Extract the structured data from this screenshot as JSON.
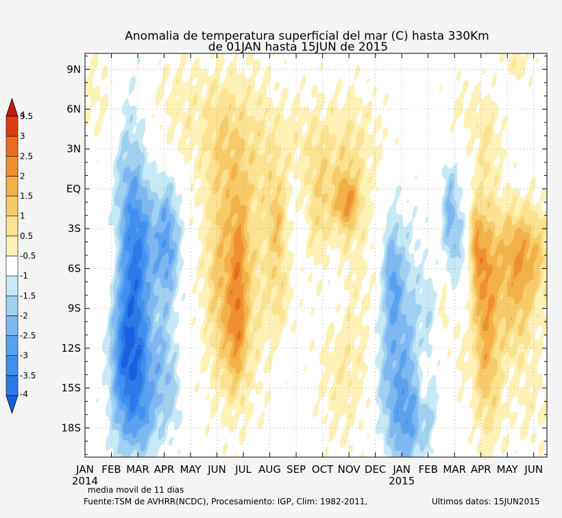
{
  "chart_data": {
    "type": "heatmap",
    "title": "Anomalia de temperatura superficial del mar (C) hasta 330Km",
    "subtitle": "de 01JAN hasta 15JUN de 2015",
    "xlabel": "",
    "ylabel": "",
    "x_tick_labels": [
      "JAN",
      "FEB",
      "MAR",
      "APR",
      "MAY",
      "JUN",
      "JUL",
      "AUG",
      "SEP",
      "OCT",
      "NOV",
      "DEC",
      "JAN",
      "FEB",
      "MAR",
      "APR",
      "MAY",
      "JUN"
    ],
    "x_year_labels": [
      {
        "label": "2014",
        "month_index": 0
      },
      {
        "label": "2015",
        "month_index": 12
      }
    ],
    "x_range_months": [
      0,
      17.5
    ],
    "y_tick_labels": [
      "9N",
      "6N",
      "3N",
      "EQ",
      "3S",
      "6S",
      "9S",
      "12S",
      "15S",
      "18S"
    ],
    "y_tick_values": [
      9,
      6,
      3,
      0,
      -3,
      -6,
      -9,
      -12,
      -15,
      -18
    ],
    "y_range_degrees": [
      -20.2,
      10.2
    ],
    "colorbar": {
      "levels": [
        -4,
        -3.5,
        -3,
        -2.5,
        -2,
        -1.5,
        -1,
        -0.5,
        0.5,
        1,
        1.5,
        2,
        2.5,
        3,
        3.5,
        4
      ],
      "labels": [
        "-4",
        "-3.5",
        "-3",
        "-2.5",
        "-2",
        "-1.5",
        "-1",
        "-0.5",
        "0.5",
        "1",
        "1.5",
        "2",
        "2.5",
        "3",
        "3.5",
        "4"
      ],
      "colors": [
        "#1a5fe0",
        "#2b7ae8",
        "#3f8ff0",
        "#5aa2f0",
        "#7db8f2",
        "#9fd0f0",
        "#c6e9f6",
        "#ffffff",
        "#fdf1b6",
        "#fbe290",
        "#f8cb6a",
        "#f4b048",
        "#f09030",
        "#ea6c1e",
        "#dc3c12",
        "#c21a10"
      ]
    },
    "features": [
      {
        "t": 1.75,
        "lat": -6.5,
        "st": 0.45,
        "sl": 7.5,
        "v": -2.8
      },
      {
        "t": 2.25,
        "lat": -4.5,
        "st": 0.35,
        "sl": 3.5,
        "v": -1.0
      },
      {
        "t": 2.0,
        "lat": -13.5,
        "st": 0.6,
        "sl": 3.0,
        "v": -1.6
      },
      {
        "t": 1.3,
        "lat": -11.5,
        "st": 0.3,
        "sl": 6.5,
        "v": -0.9
      },
      {
        "t": 2.2,
        "lat": -17.5,
        "st": 0.5,
        "sl": 2.0,
        "v": -1.0
      },
      {
        "t": 3.1,
        "lat": -4.0,
        "st": 0.35,
        "sl": 3.5,
        "v": -2.2
      },
      {
        "t": 3.0,
        "lat": -13.5,
        "st": 0.3,
        "sl": 3.0,
        "v": -1.0
      },
      {
        "t": 3.4,
        "lat": -16.0,
        "st": 0.2,
        "sl": 2.0,
        "v": -0.6
      },
      {
        "t": 1.2,
        "lat": -5.5,
        "st": 0.35,
        "sl": 3.0,
        "v": 0.9
      },
      {
        "t": 0.4,
        "lat": 7.0,
        "st": 0.6,
        "sl": 3.0,
        "v": 0.6
      },
      {
        "t": 5.3,
        "lat": -6.5,
        "st": 0.6,
        "sl": 6.5,
        "v": 1.9
      },
      {
        "t": 5.7,
        "lat": -11.5,
        "st": 0.3,
        "sl": 3.0,
        "v": 1.0
      },
      {
        "t": 5.3,
        "lat": 4.5,
        "st": 0.7,
        "sl": 3.5,
        "v": 1.0
      },
      {
        "t": 5.85,
        "lat": -5.5,
        "st": 0.25,
        "sl": 5.0,
        "v": 1.2
      },
      {
        "t": 6.6,
        "lat": -3.5,
        "st": 0.45,
        "sl": 9.0,
        "v": 0.9
      },
      {
        "t": 3.5,
        "lat": 6.0,
        "st": 0.8,
        "sl": 3.5,
        "v": 0.7
      },
      {
        "t": 7.3,
        "lat": -2.5,
        "st": 0.25,
        "sl": 2.5,
        "v": 1.4
      },
      {
        "t": 7.4,
        "lat": -8.0,
        "st": 0.35,
        "sl": 2.5,
        "v": 0.9
      },
      {
        "t": 7.7,
        "lat": 3.5,
        "st": 0.8,
        "sl": 3.0,
        "v": 0.7
      },
      {
        "t": 8.8,
        "lat": -1.5,
        "st": 0.35,
        "sl": 4.0,
        "v": 1.0
      },
      {
        "t": 9.9,
        "lat": -1.0,
        "st": 0.3,
        "sl": 1.3,
        "v": 1.5
      },
      {
        "t": 9.8,
        "lat": -0.5,
        "st": 0.6,
        "sl": 3.0,
        "v": 0.9
      },
      {
        "t": 10.4,
        "lat": -9.5,
        "st": 0.8,
        "sl": 7.0,
        "v": 0.6
      },
      {
        "t": 9.5,
        "lat": -14.5,
        "st": 0.6,
        "sl": 3.5,
        "v": 0.6
      },
      {
        "t": 10.1,
        "lat": 4.0,
        "st": 1.0,
        "sl": 3.0,
        "v": 0.7
      },
      {
        "t": 9.3,
        "lat": -7.5,
        "st": 0.3,
        "sl": 2.0,
        "v": -0.6
      },
      {
        "t": 12.0,
        "lat": -12.5,
        "st": 0.55,
        "sl": 6.5,
        "v": -1.7
      },
      {
        "t": 11.6,
        "lat": -6.5,
        "st": 0.25,
        "sl": 3.0,
        "v": -1.4
      },
      {
        "t": 12.2,
        "lat": -17.5,
        "st": 0.5,
        "sl": 2.5,
        "v": -1.1
      },
      {
        "t": 11.3,
        "lat": -13.5,
        "st": 0.3,
        "sl": 3.0,
        "v": -0.7
      },
      {
        "t": 13.0,
        "lat": -16.5,
        "st": 0.25,
        "sl": 2.0,
        "v": -0.7
      },
      {
        "t": 13.0,
        "lat": -9.0,
        "st": 0.22,
        "sl": 2.0,
        "v": -0.6
      },
      {
        "t": 12.8,
        "lat": -14.5,
        "st": 0.15,
        "sl": 1.5,
        "v": 1.0
      },
      {
        "t": 13.8,
        "lat": -2.0,
        "st": 0.2,
        "sl": 3.0,
        "v": -1.6
      },
      {
        "t": 14.2,
        "lat": -4.0,
        "st": 0.2,
        "sl": 3.0,
        "v": -0.9
      },
      {
        "t": 13.6,
        "lat": -9.0,
        "st": 0.15,
        "sl": 2.0,
        "v": 0.8
      },
      {
        "t": 14.2,
        "lat": -12.0,
        "st": 0.2,
        "sl": 2.5,
        "v": 0.6
      },
      {
        "t": 15.1,
        "lat": -7.5,
        "st": 0.35,
        "sl": 5.5,
        "v": 1.8
      },
      {
        "t": 15.3,
        "lat": -14.0,
        "st": 0.4,
        "sl": 5.0,
        "v": 1.0
      },
      {
        "t": 14.8,
        "lat": -4.0,
        "st": 0.15,
        "sl": 2.0,
        "v": 1.4
      },
      {
        "t": 16.5,
        "lat": -5.0,
        "st": 0.8,
        "sl": 2.8,
        "v": 2.4
      },
      {
        "t": 16.3,
        "lat": -10.0,
        "st": 0.5,
        "sl": 2.5,
        "v": 1.0
      },
      {
        "t": 16.9,
        "lat": -16.0,
        "st": 0.7,
        "sl": 3.5,
        "v": 0.6
      },
      {
        "t": 15.3,
        "lat": 4.0,
        "st": 0.4,
        "sl": 2.5,
        "v": 0.8
      },
      {
        "t": 16.4,
        "lat": 9.5,
        "st": 0.4,
        "sl": 1.0,
        "v": 0.9
      },
      {
        "t": 14.3,
        "lat": 6.0,
        "st": 0.5,
        "sl": 2.0,
        "v": 0.6
      }
    ]
  },
  "footer": {
    "note": "media movil de 11 dias",
    "source": "Fuente:TSM de AVHRR(NCDC), Procesamiento: IGP, Clim: 1982-2011,",
    "last_data": "Ultimos datos: 15JUN2015"
  }
}
